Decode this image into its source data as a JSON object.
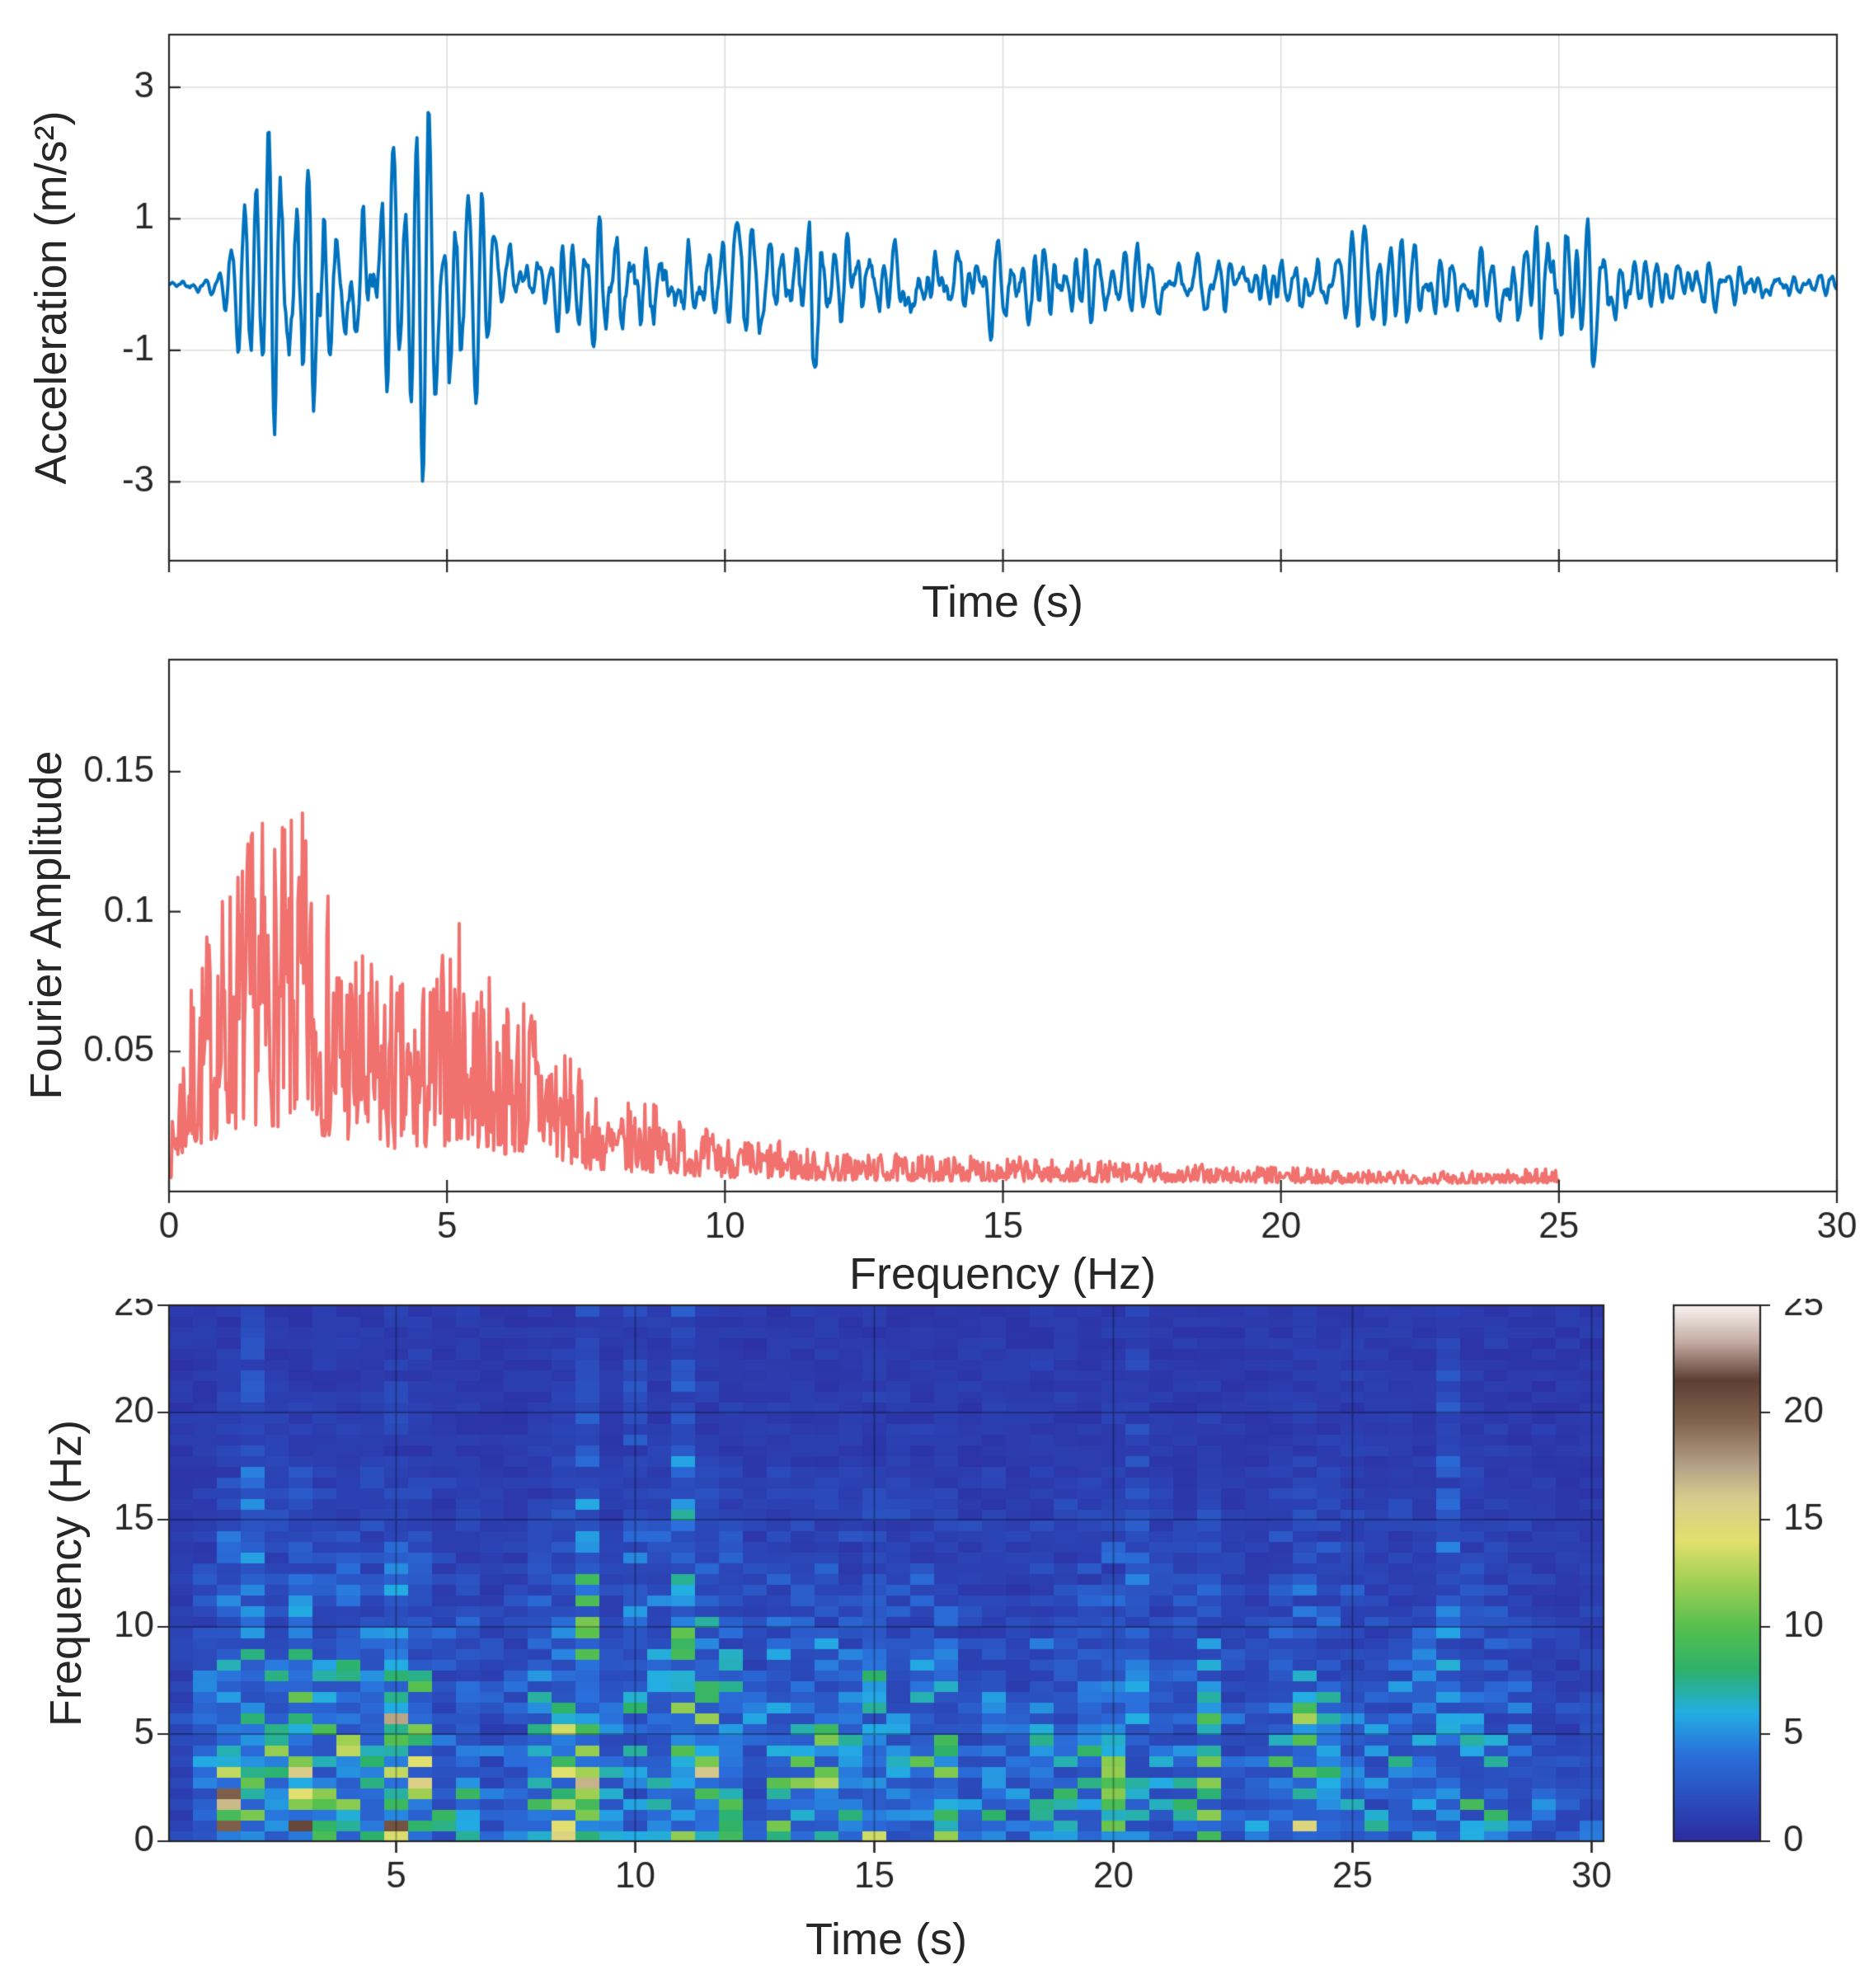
{
  "chart_data": [
    {
      "type": "line",
      "name": "acceleration-time-series",
      "title": "",
      "xlabel": "Time (s)",
      "ylabel": "Acceleration (m/s²)",
      "xlim": [
        0,
        30
      ],
      "ylim": [
        -4.2,
        3.8
      ],
      "xticks": [
        0,
        5,
        10,
        15,
        20,
        25,
        30
      ],
      "xtick_labels": [],
      "yticks": [
        3,
        1,
        -1,
        -3
      ],
      "ytick_labels": [
        "3",
        "1",
        "-1",
        "-3"
      ],
      "grid": true,
      "line_color": "#0072BD",
      "line_width": 4,
      "peak_acceleration_ms2": 3.2,
      "trough_acceleration_ms2": -3.2,
      "peak_time_s": 2.3,
      "sample_dt_s": 0.02,
      "seed": 42,
      "amplitude_envelope": [
        [
          0,
          0.12
        ],
        [
          0.8,
          0.25
        ],
        [
          1.2,
          0.9
        ],
        [
          1.6,
          2.4
        ],
        [
          2,
          3.1
        ],
        [
          2.3,
          3.2
        ],
        [
          2.7,
          2.9
        ],
        [
          3,
          2.1
        ],
        [
          3.4,
          1.6
        ],
        [
          3.8,
          2.2
        ],
        [
          4.2,
          1.8
        ],
        [
          4.6,
          2.5
        ],
        [
          5,
          2.3
        ],
        [
          5.4,
          1.9
        ],
        [
          5.8,
          1.2
        ],
        [
          6.2,
          0.9
        ],
        [
          6.8,
          0.8
        ],
        [
          7.4,
          0.9
        ],
        [
          8,
          1.5
        ],
        [
          8.5,
          1.6
        ],
        [
          9,
          1.4
        ],
        [
          9.5,
          1.2
        ],
        [
          10,
          1.1
        ],
        [
          10.5,
          1.3
        ],
        [
          11,
          1.2
        ],
        [
          11.5,
          2.0
        ],
        [
          12,
          1.2
        ],
        [
          12.5,
          1.0
        ],
        [
          13,
          1.2
        ],
        [
          13.5,
          1.1
        ],
        [
          14,
          0.9
        ],
        [
          14.5,
          1.1
        ],
        [
          15,
          1.0
        ],
        [
          15.5,
          0.9
        ],
        [
          16,
          0.8
        ],
        [
          16.5,
          0.9
        ],
        [
          17,
          0.8
        ],
        [
          17.5,
          0.7
        ],
        [
          18,
          0.75
        ],
        [
          18.5,
          0.65
        ],
        [
          19,
          0.7
        ],
        [
          19.5,
          0.6
        ],
        [
          20,
          0.9
        ],
        [
          20.5,
          0.8
        ],
        [
          21,
          0.7
        ],
        [
          21.5,
          0.75
        ],
        [
          22,
          0.85
        ],
        [
          22.5,
          0.7
        ],
        [
          23,
          0.65
        ],
        [
          23.5,
          0.8
        ],
        [
          24,
          1.3
        ],
        [
          24.5,
          1.2
        ],
        [
          25,
          1.5
        ],
        [
          25.5,
          1.4
        ],
        [
          26,
          0.9
        ],
        [
          26.5,
          0.6
        ],
        [
          27,
          0.55
        ],
        [
          27.5,
          0.5
        ],
        [
          28,
          0.5
        ],
        [
          28.5,
          0.45
        ],
        [
          29,
          0.4
        ],
        [
          29.5,
          0.3
        ],
        [
          30,
          0.25
        ]
      ]
    },
    {
      "type": "line",
      "name": "fourier-amplitude-spectrum",
      "title": "",
      "xlabel": "Frequency (Hz)",
      "ylabel": "Fourier Amplitude",
      "xlim": [
        0,
        30
      ],
      "ylim": [
        0,
        0.19
      ],
      "xticks": [
        0,
        5,
        10,
        15,
        20,
        25,
        30
      ],
      "xtick_labels": [
        "0",
        "5",
        "10",
        "15",
        "20",
        "25",
        "30"
      ],
      "yticks": [
        0.05,
        0.1,
        0.15
      ],
      "ytick_labels": [
        "0.05",
        "0.1",
        "0.15"
      ],
      "grid": false,
      "line_color": "#F0716E",
      "line_width": 4,
      "data_max_frequency_hz": 25,
      "peak_amplitude": 0.135,
      "peak_frequency_hz": 1.6,
      "freq_step_hz": 0.02,
      "seed": 7,
      "amplitude_envelope": [
        [
          0,
          0.008
        ],
        [
          0.2,
          0.04
        ],
        [
          0.5,
          0.06
        ],
        [
          0.8,
          0.075
        ],
        [
          1.2,
          0.09
        ],
        [
          1.6,
          0.1
        ],
        [
          2,
          0.095
        ],
        [
          2.4,
          0.1
        ],
        [
          2.8,
          0.08
        ],
        [
          3.2,
          0.07
        ],
        [
          3.6,
          0.06
        ],
        [
          4,
          0.058
        ],
        [
          4.4,
          0.052
        ],
        [
          4.8,
          0.06
        ],
        [
          5.2,
          0.072
        ],
        [
          5.6,
          0.06
        ],
        [
          6,
          0.05
        ],
        [
          6.5,
          0.055
        ],
        [
          7,
          0.04
        ],
        [
          7.5,
          0.028
        ],
        [
          8,
          0.02
        ],
        [
          8.5,
          0.024
        ],
        [
          9,
          0.02
        ],
        [
          9.5,
          0.016
        ],
        [
          10,
          0.014
        ],
        [
          10.5,
          0.012
        ],
        [
          11,
          0.012
        ],
        [
          11.5,
          0.01
        ],
        [
          12,
          0.009
        ],
        [
          13,
          0.0085
        ],
        [
          14,
          0.008
        ],
        [
          15,
          0.008
        ],
        [
          16,
          0.007
        ],
        [
          17,
          0.0065
        ],
        [
          18,
          0.006
        ],
        [
          19,
          0.0055
        ],
        [
          20,
          0.005
        ],
        [
          21,
          0.0045
        ],
        [
          22,
          0.004
        ],
        [
          23,
          0.0042
        ],
        [
          24,
          0.0045
        ],
        [
          25,
          0.005
        ]
      ]
    },
    {
      "type": "heatmap",
      "name": "spectrogram",
      "title": "",
      "xlabel": "Time (s)",
      "ylabel": "Frequency (Hz)",
      "xlim": [
        0.25,
        30.25
      ],
      "ylim": [
        0,
        25
      ],
      "xticks": [
        5,
        10,
        15,
        20,
        25,
        30
      ],
      "xtick_labels": [
        "5",
        "10",
        "15",
        "20",
        "25",
        "30"
      ],
      "yticks": [
        0,
        5,
        10,
        15,
        20,
        25
      ],
      "ytick_labels": [
        "0",
        "5",
        "10",
        "15",
        "20",
        "25"
      ],
      "grid": true,
      "time_bin_s": 0.5,
      "freq_bin_hz": 0.5,
      "seed": 99,
      "intensity_scale": 16,
      "background_level": 0.9,
      "time_envelope_norm": 3.2,
      "freq_profile": [
        [
          0,
          1
        ],
        [
          1,
          1
        ],
        [
          2,
          1
        ],
        [
          3,
          0.95
        ],
        [
          4,
          0.85
        ],
        [
          5,
          0.8
        ],
        [
          6,
          0.7
        ],
        [
          7,
          0.6
        ],
        [
          8,
          0.5
        ],
        [
          9,
          0.42
        ],
        [
          10,
          0.35
        ],
        [
          11,
          0.3
        ],
        [
          12,
          0.25
        ],
        [
          13,
          0.22
        ],
        [
          14,
          0.2
        ],
        [
          15,
          0.16
        ],
        [
          16,
          0.12
        ],
        [
          17,
          0.09
        ],
        [
          18,
          0.07
        ],
        [
          19,
          0.055
        ],
        [
          20,
          0.05
        ],
        [
          21,
          0.04
        ],
        [
          22,
          0.035
        ],
        [
          23,
          0.03
        ],
        [
          24,
          0.025
        ],
        [
          25,
          0.02
        ]
      ],
      "colorbar": {
        "range": [
          0,
          25
        ],
        "ticks": [
          0,
          5,
          10,
          15,
          20,
          25
        ],
        "tick_labels": [
          "0",
          "5",
          "10",
          "15",
          "20",
          "25"
        ]
      },
      "colormap_stops": [
        [
          0.0,
          "#2c2ca0"
        ],
        [
          0.16,
          "#2a6fdb"
        ],
        [
          0.24,
          "#23aee3"
        ],
        [
          0.32,
          "#2db26a"
        ],
        [
          0.4,
          "#57c04f"
        ],
        [
          0.48,
          "#9ccf52"
        ],
        [
          0.56,
          "#e2e06e"
        ],
        [
          0.64,
          "#d9cb8d"
        ],
        [
          0.7,
          "#b5a186"
        ],
        [
          0.78,
          "#846550"
        ],
        [
          0.86,
          "#5e3f33"
        ],
        [
          0.93,
          "#c4aaa2"
        ],
        [
          1.0,
          "#f9f4f1"
        ]
      ]
    }
  ]
}
